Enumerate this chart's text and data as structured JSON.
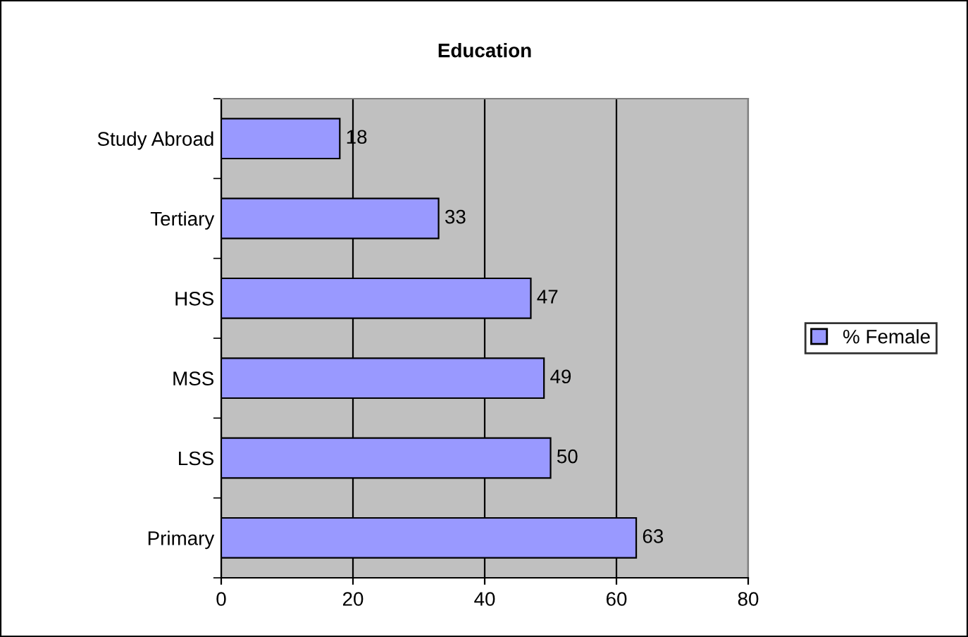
{
  "chart_data": {
    "type": "bar",
    "orientation": "horizontal",
    "title": "Education",
    "categories": [
      "Study Abroad",
      "Tertiary",
      "HSS",
      "MSS",
      "LSS",
      "Primary"
    ],
    "series": [
      {
        "name": "% Female",
        "color": "#9999ff",
        "values": [
          18,
          33,
          47,
          49,
          50,
          63
        ]
      }
    ],
    "xlim": [
      0,
      80
    ],
    "xticks": [
      0,
      20,
      40,
      60,
      80
    ],
    "grid": "x",
    "legend": "right",
    "data_labels": true
  }
}
